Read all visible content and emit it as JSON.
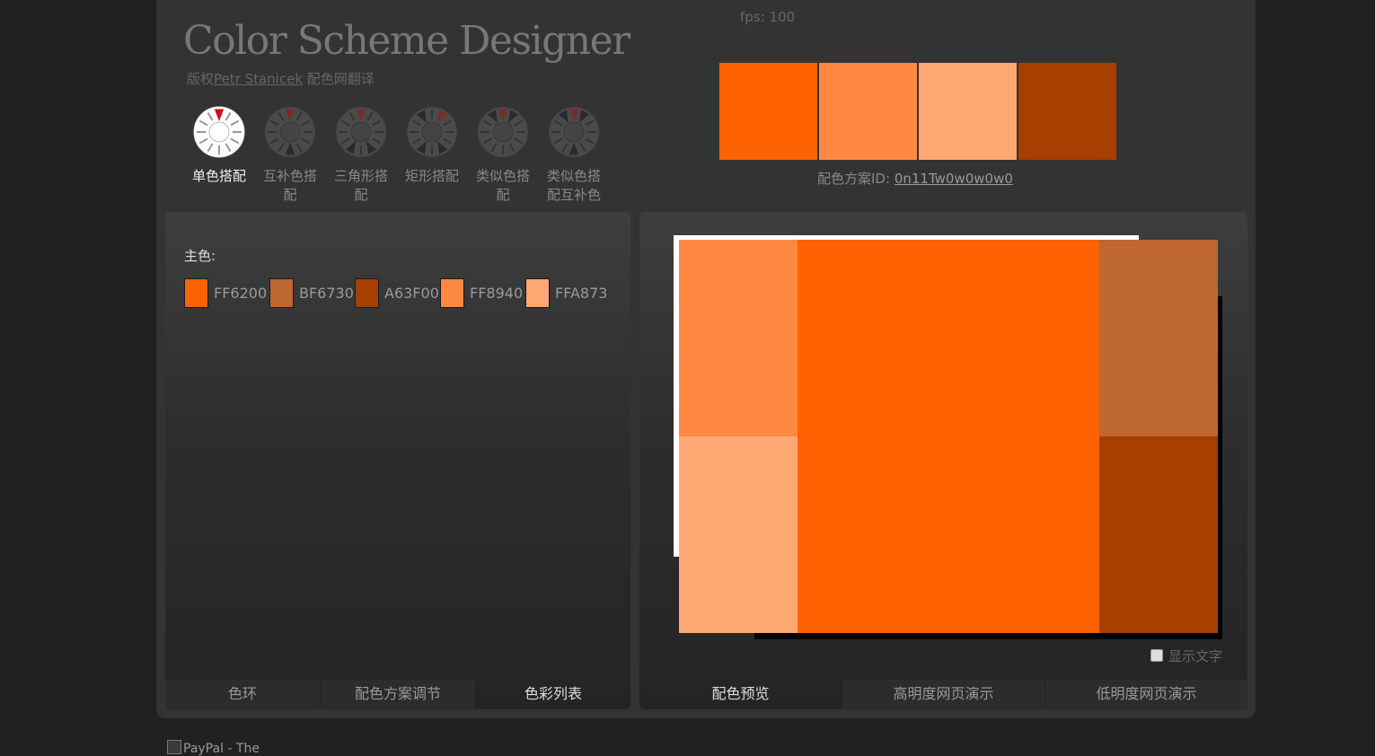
{
  "header": {
    "logo_text": "Color Scheme Designer",
    "credit_prefix": "版权",
    "credit_author": "Petr Stanicek",
    "credit_translation": "配色网翻译",
    "fps": "fps: 100"
  },
  "schemes": [
    {
      "label": "单色搭配",
      "icon": "mono-wheel-icon",
      "active": true
    },
    {
      "label": "互补色搭配",
      "icon": "complement-wheel-icon",
      "active": false
    },
    {
      "label": "三角形搭配",
      "icon": "triad-wheel-icon",
      "active": false
    },
    {
      "label": "矩形搭配",
      "icon": "tetrad-wheel-icon",
      "active": false
    },
    {
      "label": "类似色搭配",
      "icon": "analogic-wheel-icon",
      "active": false
    },
    {
      "label": "类似色搭配互补色",
      "icon": "accented-analogic-wheel-icon",
      "active": false
    }
  ],
  "palette_preview": {
    "colors": [
      "#FF6200",
      "#FF8940",
      "#FFA873",
      "#A63F00"
    ]
  },
  "scheme_id": {
    "label": "配色方案ID:",
    "value": "0n11Tw0w0w0w0"
  },
  "left_panel": {
    "main_label": "主色:",
    "colors": [
      {
        "hex": "FF6200",
        "color": "#FF6200"
      },
      {
        "hex": "BF6730",
        "color": "#BF6730"
      },
      {
        "hex": "A63F00",
        "color": "#A63F00"
      },
      {
        "hex": "FF8940",
        "color": "#FF8940"
      },
      {
        "hex": "FFA873",
        "color": "#FFA873"
      }
    ],
    "tabs": [
      {
        "label": "色环",
        "active": false
      },
      {
        "label": "配色方案调节",
        "active": false
      },
      {
        "label": "色彩列表",
        "active": true
      }
    ]
  },
  "right_panel": {
    "preview_colors": {
      "top_left": "#FF8940",
      "bottom_left": "#FFA873",
      "center": "#FF6200",
      "top_right": "#BF6730",
      "bottom_right": "#A63F00"
    },
    "show_text_label": "显示文字",
    "show_text_checked": false,
    "tabs": [
      {
        "label": "配色预览",
        "active": true
      },
      {
        "label": "高明度网页演示",
        "active": false
      },
      {
        "label": "低明度网页演示",
        "active": false
      }
    ]
  },
  "footer": {
    "ad_alt": "PayPal - The"
  }
}
